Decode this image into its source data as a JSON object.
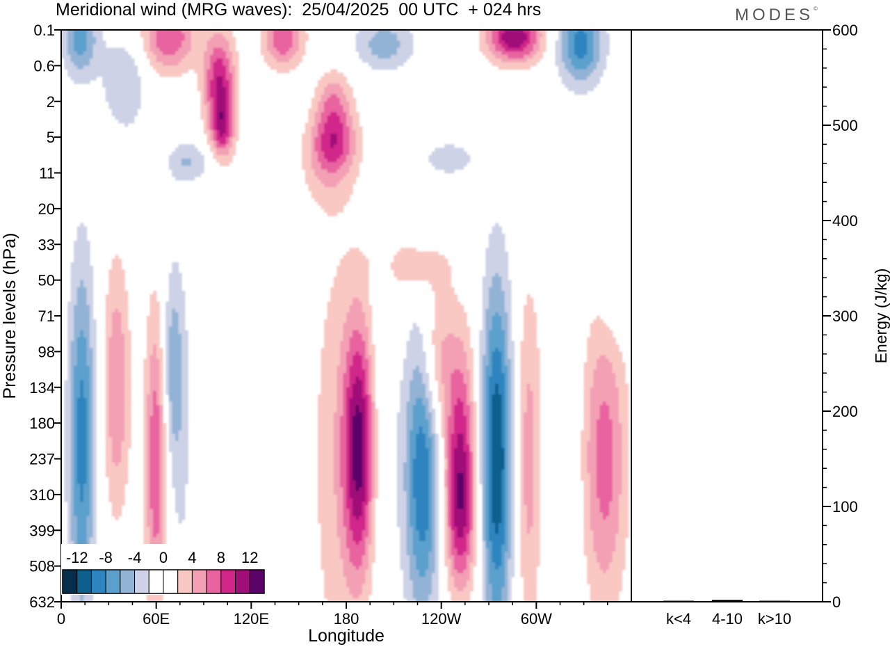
{
  "header": {
    "title": "Meridional wind (MRG waves):  25/04/2025  00 UTC  + 024 hrs",
    "brand": "MODES",
    "brand_mark": "©"
  },
  "colors": {
    "scale": [
      "#062f4d",
      "#0d5f8e",
      "#2e84bf",
      "#5ba0cd",
      "#93b3d6",
      "#cdd2e6",
      "#ffffff",
      "#ffffff",
      "#f9c8c3",
      "#f3a0b5",
      "#e8649f",
      "#d1258a",
      "#a00e78",
      "#5a0467"
    ],
    "axes": "#000000"
  },
  "chart_data": [
    {
      "type": "heatmap",
      "title": "Meridional wind (MRG waves):  25/04/2025  00 UTC  + 024 hrs",
      "xlabel": "Longitude",
      "ylabel": "Pressure levels (hPa)",
      "x_ticks": [
        "0",
        "60E",
        "120E",
        "180",
        "120W",
        "60W"
      ],
      "x_tick_values": [
        0,
        60,
        120,
        180,
        240,
        300
      ],
      "xlim": [
        0,
        360
      ],
      "y_ticks": [
        "0.1",
        "0.6",
        "2",
        "5",
        "11",
        "20",
        "33",
        "50",
        "71",
        "98",
        "134",
        "180",
        "237",
        "310",
        "399",
        "508",
        "632"
      ],
      "colorbar": {
        "labels": [
          "-12",
          "-8",
          "-4",
          "0",
          "4",
          "8",
          "12"
        ],
        "levels": [
          -14,
          -12,
          -10,
          -8,
          -6,
          -4,
          -2,
          0,
          2,
          4,
          6,
          8,
          10,
          12,
          14
        ]
      },
      "features": [
        {
          "lon": 13,
          "level": 11.5,
          "value": -9,
          "lon_halfwidth": 6,
          "level_halfwidth": 3.5
        },
        {
          "lon": 35,
          "level": 10.0,
          "value": 6,
          "lon_halfwidth": 6,
          "level_halfwidth": 2.5
        },
        {
          "lon": 60,
          "level": 12.0,
          "value": 8,
          "lon_halfwidth": 5,
          "level_halfwidth": 3.0
        },
        {
          "lon": 70,
          "level": 9.5,
          "value": -5,
          "lon_halfwidth": 5,
          "level_halfwidth": 2.0
        },
        {
          "lon": 76,
          "level": 12.0,
          "value": -2,
          "lon_halfwidth": 6,
          "level_halfwidth": 4.0
        },
        {
          "lon": 173,
          "level": 12.0,
          "value": 3,
          "lon_halfwidth": 12,
          "level_halfwidth": 5.0
        },
        {
          "lon": 188,
          "level": 11.7,
          "value": 12,
          "lon_halfwidth": 7,
          "level_halfwidth": 2.5
        },
        {
          "lon": 204,
          "level": 10.5,
          "value": -2,
          "lon_halfwidth": 6,
          "level_halfwidth": 5.0
        },
        {
          "lon": 228,
          "level": 12.5,
          "value": -10,
          "lon_halfwidth": 8,
          "level_halfwidth": 2.8
        },
        {
          "lon": 237,
          "level": 9.2,
          "value": 5,
          "lon_halfwidth": 7,
          "level_halfwidth": 1.5
        },
        {
          "lon": 252,
          "level": 11.0,
          "value": 7,
          "lon_halfwidth": 7,
          "level_halfwidth": 2.0
        },
        {
          "lon": 252,
          "level": 13.6,
          "value": 9,
          "lon_halfwidth": 7,
          "level_halfwidth": 1.6
        },
        {
          "lon": 275,
          "level": 12.0,
          "value": -12,
          "lon_halfwidth": 7,
          "level_halfwidth": 3.5
        },
        {
          "lon": 295,
          "level": 12.0,
          "value": 5,
          "lon_halfwidth": 6,
          "level_halfwidth": 3.5
        },
        {
          "lon": 318,
          "level": 12.5,
          "value": -2,
          "lon_halfwidth": 7,
          "level_halfwidth": 3.5
        },
        {
          "lon": 343,
          "level": 12.0,
          "value": 7,
          "lon_halfwidth": 10,
          "level_halfwidth": 3.0
        },
        {
          "lon": 12,
          "level": 0.2,
          "value": -7,
          "lon_halfwidth": 8,
          "level_halfwidth": 0.8
        },
        {
          "lon": 40,
          "level": 1.5,
          "value": -4,
          "lon_halfwidth": 10,
          "level_halfwidth": 1.0
        },
        {
          "lon": 68,
          "level": 0.2,
          "value": 8,
          "lon_halfwidth": 12,
          "level_halfwidth": 0.7
        },
        {
          "lon": 100,
          "level": 1.5,
          "value": 10,
          "lon_halfwidth": 7,
          "level_halfwidth": 1.0
        },
        {
          "lon": 102,
          "level": 2.8,
          "value": 7,
          "lon_halfwidth": 5,
          "level_halfwidth": 0.6
        },
        {
          "lon": 140,
          "level": 0.2,
          "value": 8,
          "lon_halfwidth": 9,
          "level_halfwidth": 0.6
        },
        {
          "lon": 172,
          "level": 2.0,
          "value": 5,
          "lon_halfwidth": 8,
          "level_halfwidth": 0.6
        },
        {
          "lon": 172,
          "level": 3.1,
          "value": 7,
          "lon_halfwidth": 10,
          "level_halfwidth": 0.6
        },
        {
          "lon": 168,
          "level": 3.9,
          "value": 3,
          "lon_halfwidth": 12,
          "level_halfwidth": 0.8
        },
        {
          "lon": 204,
          "level": 0.4,
          "value": -5,
          "lon_halfwidth": 14,
          "level_halfwidth": 0.5
        },
        {
          "lon": 286,
          "level": 0.2,
          "value": 12,
          "lon_halfwidth": 12,
          "level_halfwidth": 0.5
        },
        {
          "lon": 328,
          "level": 0.4,
          "value": -9,
          "lon_halfwidth": 10,
          "level_halfwidth": 0.8
        },
        {
          "lon": 220,
          "level": 6.6,
          "value": 4,
          "lon_halfwidth": 16,
          "level_halfwidth": 0.5
        },
        {
          "lon": 350,
          "level": 7.5,
          "value": -2,
          "lon_halfwidth": 8,
          "level_halfwidth": 1.0
        },
        {
          "lon": 80,
          "level": 3.7,
          "value": -4,
          "lon_halfwidth": 10,
          "level_halfwidth": 0.4
        },
        {
          "lon": 245,
          "level": 3.6,
          "value": -3,
          "lon_halfwidth": 14,
          "level_halfwidth": 0.4
        }
      ]
    },
    {
      "type": "bar",
      "categories": [
        "k<4",
        "4-10",
        "k>10"
      ],
      "values": [
        0.5,
        2,
        0.5
      ],
      "ylabel": "Energy (J/kg)",
      "ylim": [
        0,
        600
      ],
      "y_ticks": [
        0,
        100,
        200,
        300,
        400,
        500,
        600
      ]
    }
  ]
}
